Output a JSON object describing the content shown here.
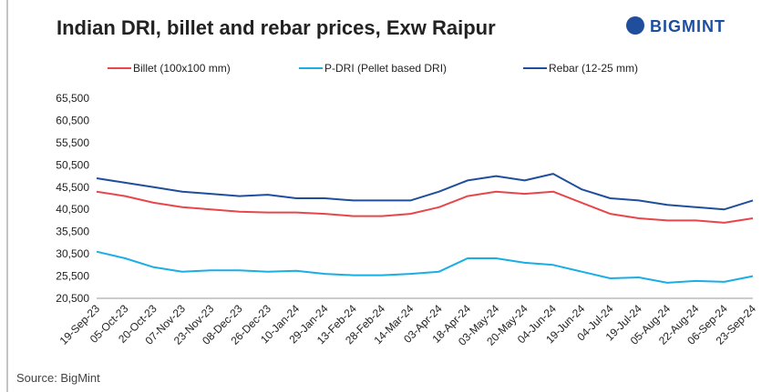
{
  "brand": "BIGMINT",
  "source": "Source: BigMint",
  "chart_data": {
    "type": "line",
    "title": "Indian DRI, billet and rebar prices, Exw Raipur",
    "categories": [
      "19-Sep-23",
      "05-Oct-23",
      "20-Oct-23",
      "07-Nov-23",
      "23-Nov-23",
      "08-Dec-23",
      "26-Dec-23",
      "10-Jan-24",
      "29-Jan-24",
      "13-Feb-24",
      "28-Feb-24",
      "14-Mar-24",
      "03-Apr-24",
      "18-Apr-24",
      "03-May-24",
      "20-May-24",
      "04-Jun-24",
      "19-Jun-24",
      "04-Jul-24",
      "19-Jul-24",
      "05-Aug-24",
      "22-Aug-24",
      "06-Sep-24",
      "23-Sep-24"
    ],
    "series": [
      {
        "name": "Billet (100x100 mm)",
        "color": "#e8464a",
        "values": [
          44500,
          43500,
          42000,
          41000,
          40500,
          40000,
          39800,
          39800,
          39500,
          39000,
          39000,
          39500,
          41000,
          43500,
          44500,
          44000,
          44500,
          42000,
          39500,
          38500,
          38000,
          38000,
          37500,
          38500
        ]
      },
      {
        "name": "P-DRI (Pellet based DRI)",
        "color": "#1aaee5",
        "values": [
          31000,
          29500,
          27500,
          26500,
          26800,
          26800,
          26500,
          26700,
          26000,
          25700,
          25700,
          26000,
          26500,
          29500,
          29500,
          28500,
          28000,
          26500,
          25000,
          25200,
          24000,
          24400,
          24200,
          25500
        ]
      },
      {
        "name": "Rebar (12-25 mm)",
        "color": "#1f4e9c",
        "values": [
          47500,
          46500,
          45500,
          44500,
          44000,
          43500,
          43800,
          43000,
          43000,
          42500,
          42500,
          42500,
          44500,
          47000,
          48000,
          47000,
          48500,
          45000,
          43000,
          42500,
          41500,
          41000,
          40500,
          42500
        ]
      }
    ],
    "ylim": [
      20500,
      65500
    ],
    "yticks": [
      {
        "value": 20500,
        "label": "20,500"
      },
      {
        "value": 25500,
        "label": "25,500"
      },
      {
        "value": 30500,
        "label": "30,500"
      },
      {
        "value": 35500,
        "label": "35,500"
      },
      {
        "value": 40500,
        "label": "40,500"
      },
      {
        "value": 45500,
        "label": "45,500"
      },
      {
        "value": 50500,
        "label": "50,500"
      },
      {
        "value": 55500,
        "label": "55,500"
      },
      {
        "value": 60500,
        "label": "60,500"
      },
      {
        "value": 65500,
        "label": "65,500"
      }
    ],
    "grid": false
  }
}
